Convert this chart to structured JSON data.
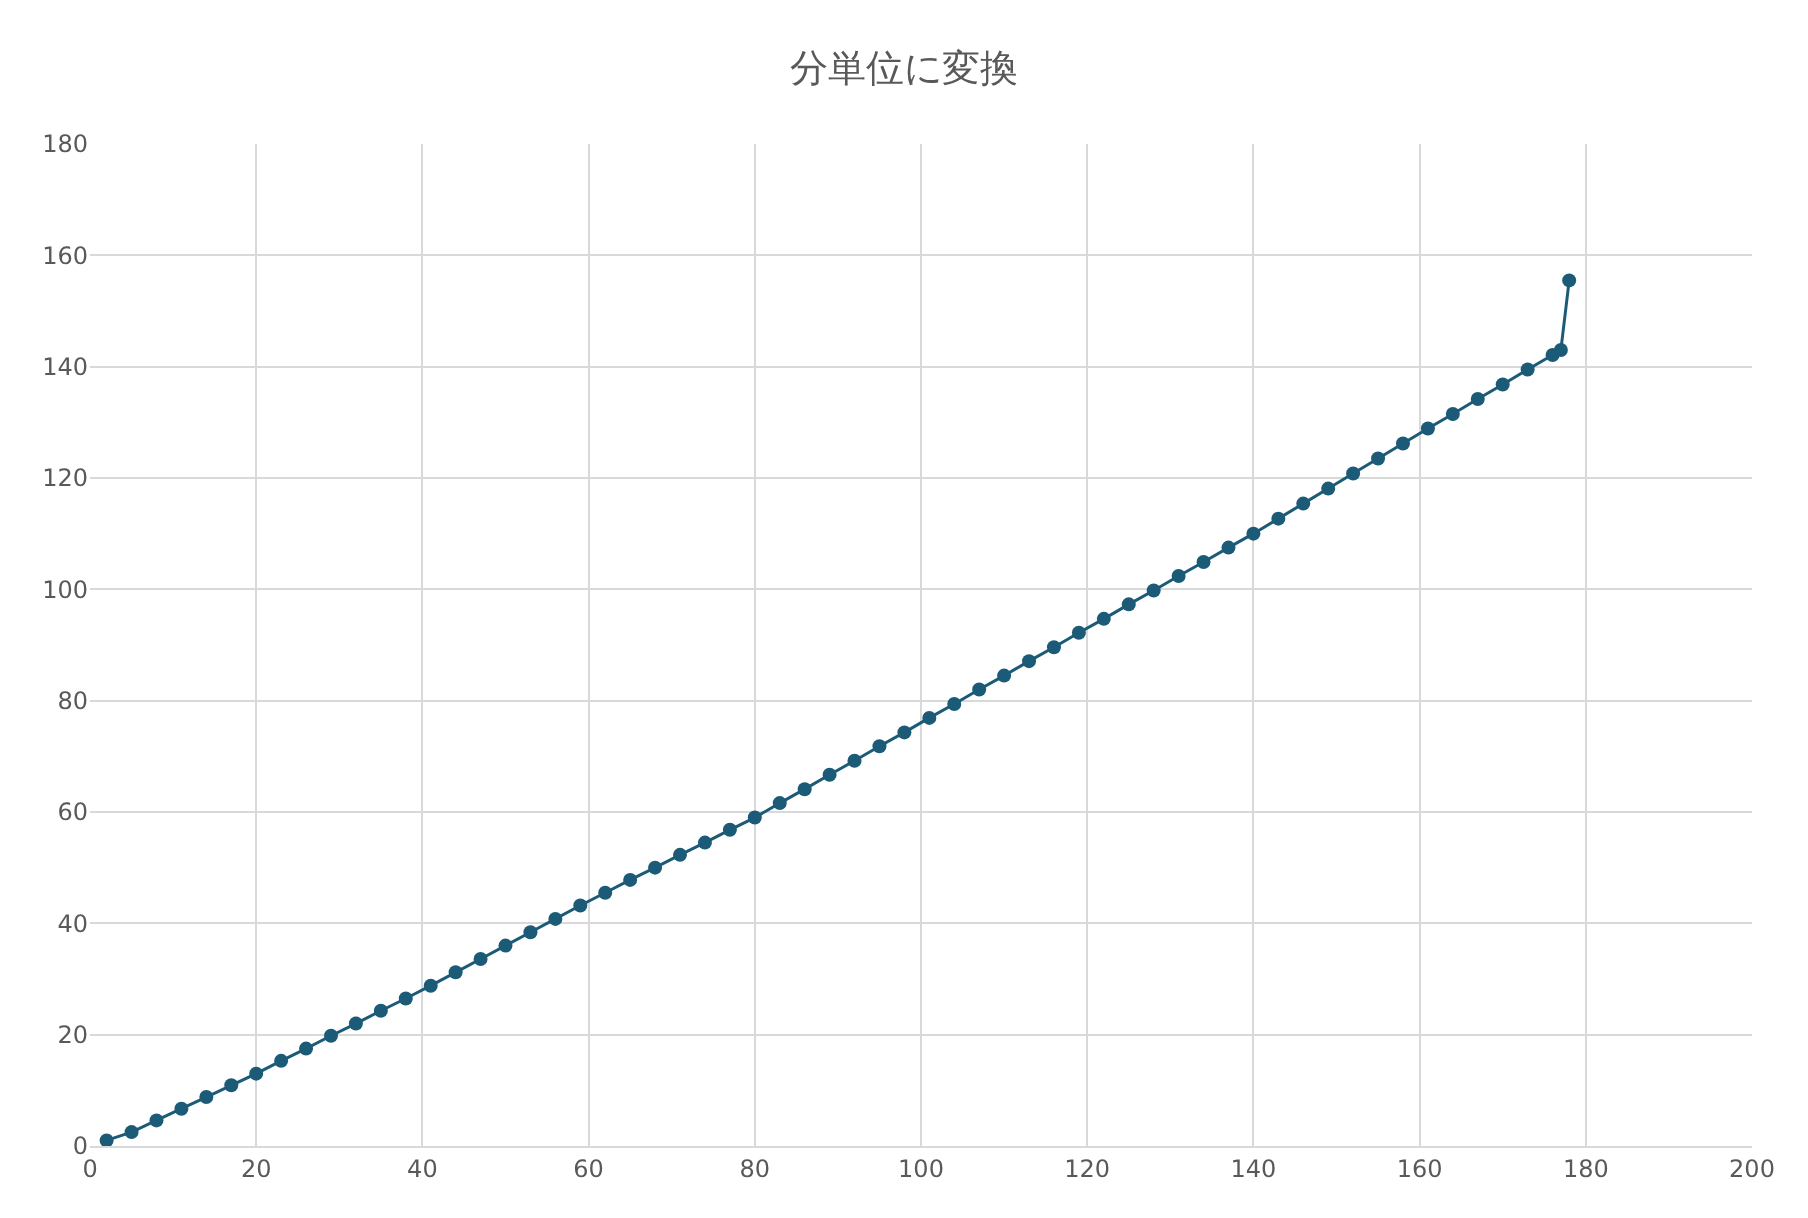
{
  "chart_data": {
    "type": "line",
    "title": "分単位に変換",
    "line_style": "solid",
    "marker": "circle",
    "grid": true,
    "legend": false,
    "xlim": [
      0,
      200
    ],
    "xticks": [
      0,
      20,
      40,
      60,
      80,
      100,
      120,
      140,
      160,
      180,
      200
    ],
    "ylim": [
      0,
      180
    ],
    "yticks": [
      0,
      20,
      40,
      60,
      80,
      100,
      120,
      140,
      160,
      180
    ],
    "series": [
      {
        "color": "#1b5b78",
        "x": [
          2,
          5,
          8,
          11,
          14,
          17,
          20,
          23,
          26,
          29,
          32,
          35,
          38,
          41,
          44,
          47,
          50,
          53,
          56,
          59,
          62,
          65,
          68,
          71,
          74,
          77,
          80,
          83,
          86,
          89,
          92,
          95,
          98,
          101,
          104,
          107,
          110,
          113,
          116,
          119,
          122,
          125,
          128,
          131,
          134,
          137,
          140,
          143,
          146,
          149,
          152,
          155,
          158,
          161,
          164,
          167,
          170,
          173,
          176,
          177,
          178
        ],
        "values": [
          1,
          2.5,
          4.6,
          6.7,
          8.8,
          10.9,
          13,
          15.3,
          17.5,
          19.8,
          22,
          24.3,
          26.5,
          28.8,
          31.2,
          33.6,
          36,
          38.4,
          40.8,
          43.2,
          45.5,
          47.8,
          50,
          52.3,
          54.5,
          56.8,
          59,
          61.6,
          64.1,
          66.7,
          69.2,
          71.8,
          74.3,
          76.9,
          79.4,
          82,
          84.5,
          87.1,
          89.6,
          92.2,
          94.7,
          97.3,
          99.8,
          102.4,
          104.9,
          107.5,
          110,
          112.7,
          115.4,
          118.1,
          120.8,
          123.5,
          126.2,
          128.9,
          131.5,
          134.2,
          136.8,
          139.5,
          142.1,
          143,
          155.5
        ]
      }
    ]
  }
}
